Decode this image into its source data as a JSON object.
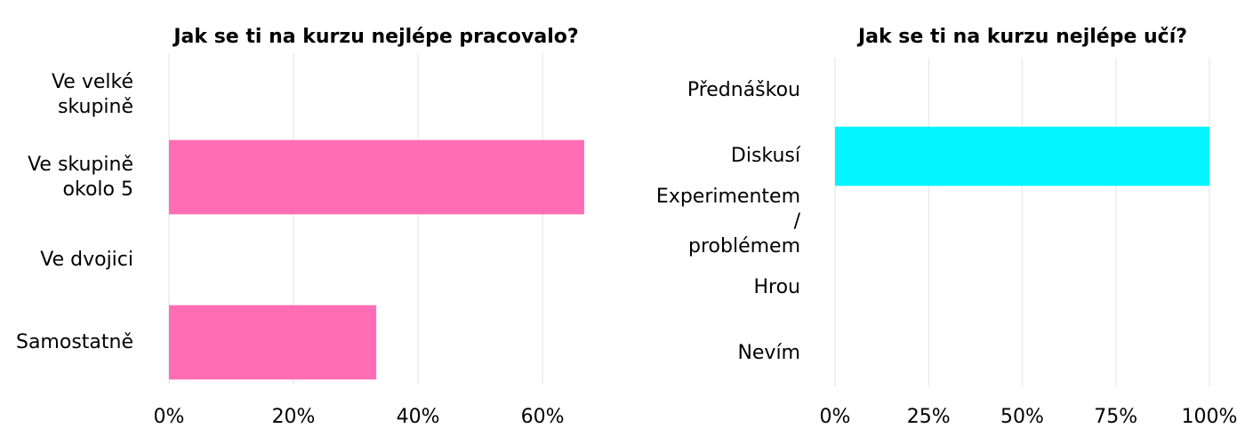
{
  "chart_data": [
    {
      "type": "bar",
      "orientation": "horizontal",
      "title": "Jak se ti na kurzu nejlépe pracovalo?",
      "categories": [
        "Ve velké\nskupině",
        "Ve skupině\nokolo 5",
        "Ve dvojici",
        "Samostatně"
      ],
      "values": [
        0,
        66.7,
        0,
        33.3
      ],
      "color": "#ff6eb4",
      "xlim": [
        0,
        66.7
      ],
      "xticks": [
        {
          "value": 0,
          "label": "0%"
        },
        {
          "value": 20,
          "label": "20%"
        },
        {
          "value": 40,
          "label": "40%"
        },
        {
          "value": 60,
          "label": "60%"
        }
      ],
      "grid": true
    },
    {
      "type": "bar",
      "orientation": "horizontal",
      "title": "Jak se ti na kurzu nejlépe učí?",
      "categories": [
        "Přednáškou",
        "Diskusí",
        "Experimentem /\nproblémem",
        "Hrou",
        "Nevím"
      ],
      "values": [
        0,
        100,
        0,
        0,
        0
      ],
      "color": "#00f5ff",
      "xlim": [
        0,
        100
      ],
      "xticks": [
        {
          "value": 0,
          "label": "0%"
        },
        {
          "value": 25,
          "label": "25%"
        },
        {
          "value": 50,
          "label": "50%"
        },
        {
          "value": 75,
          "label": "75%"
        },
        {
          "value": 100,
          "label": "100%"
        }
      ],
      "grid": true
    }
  ]
}
